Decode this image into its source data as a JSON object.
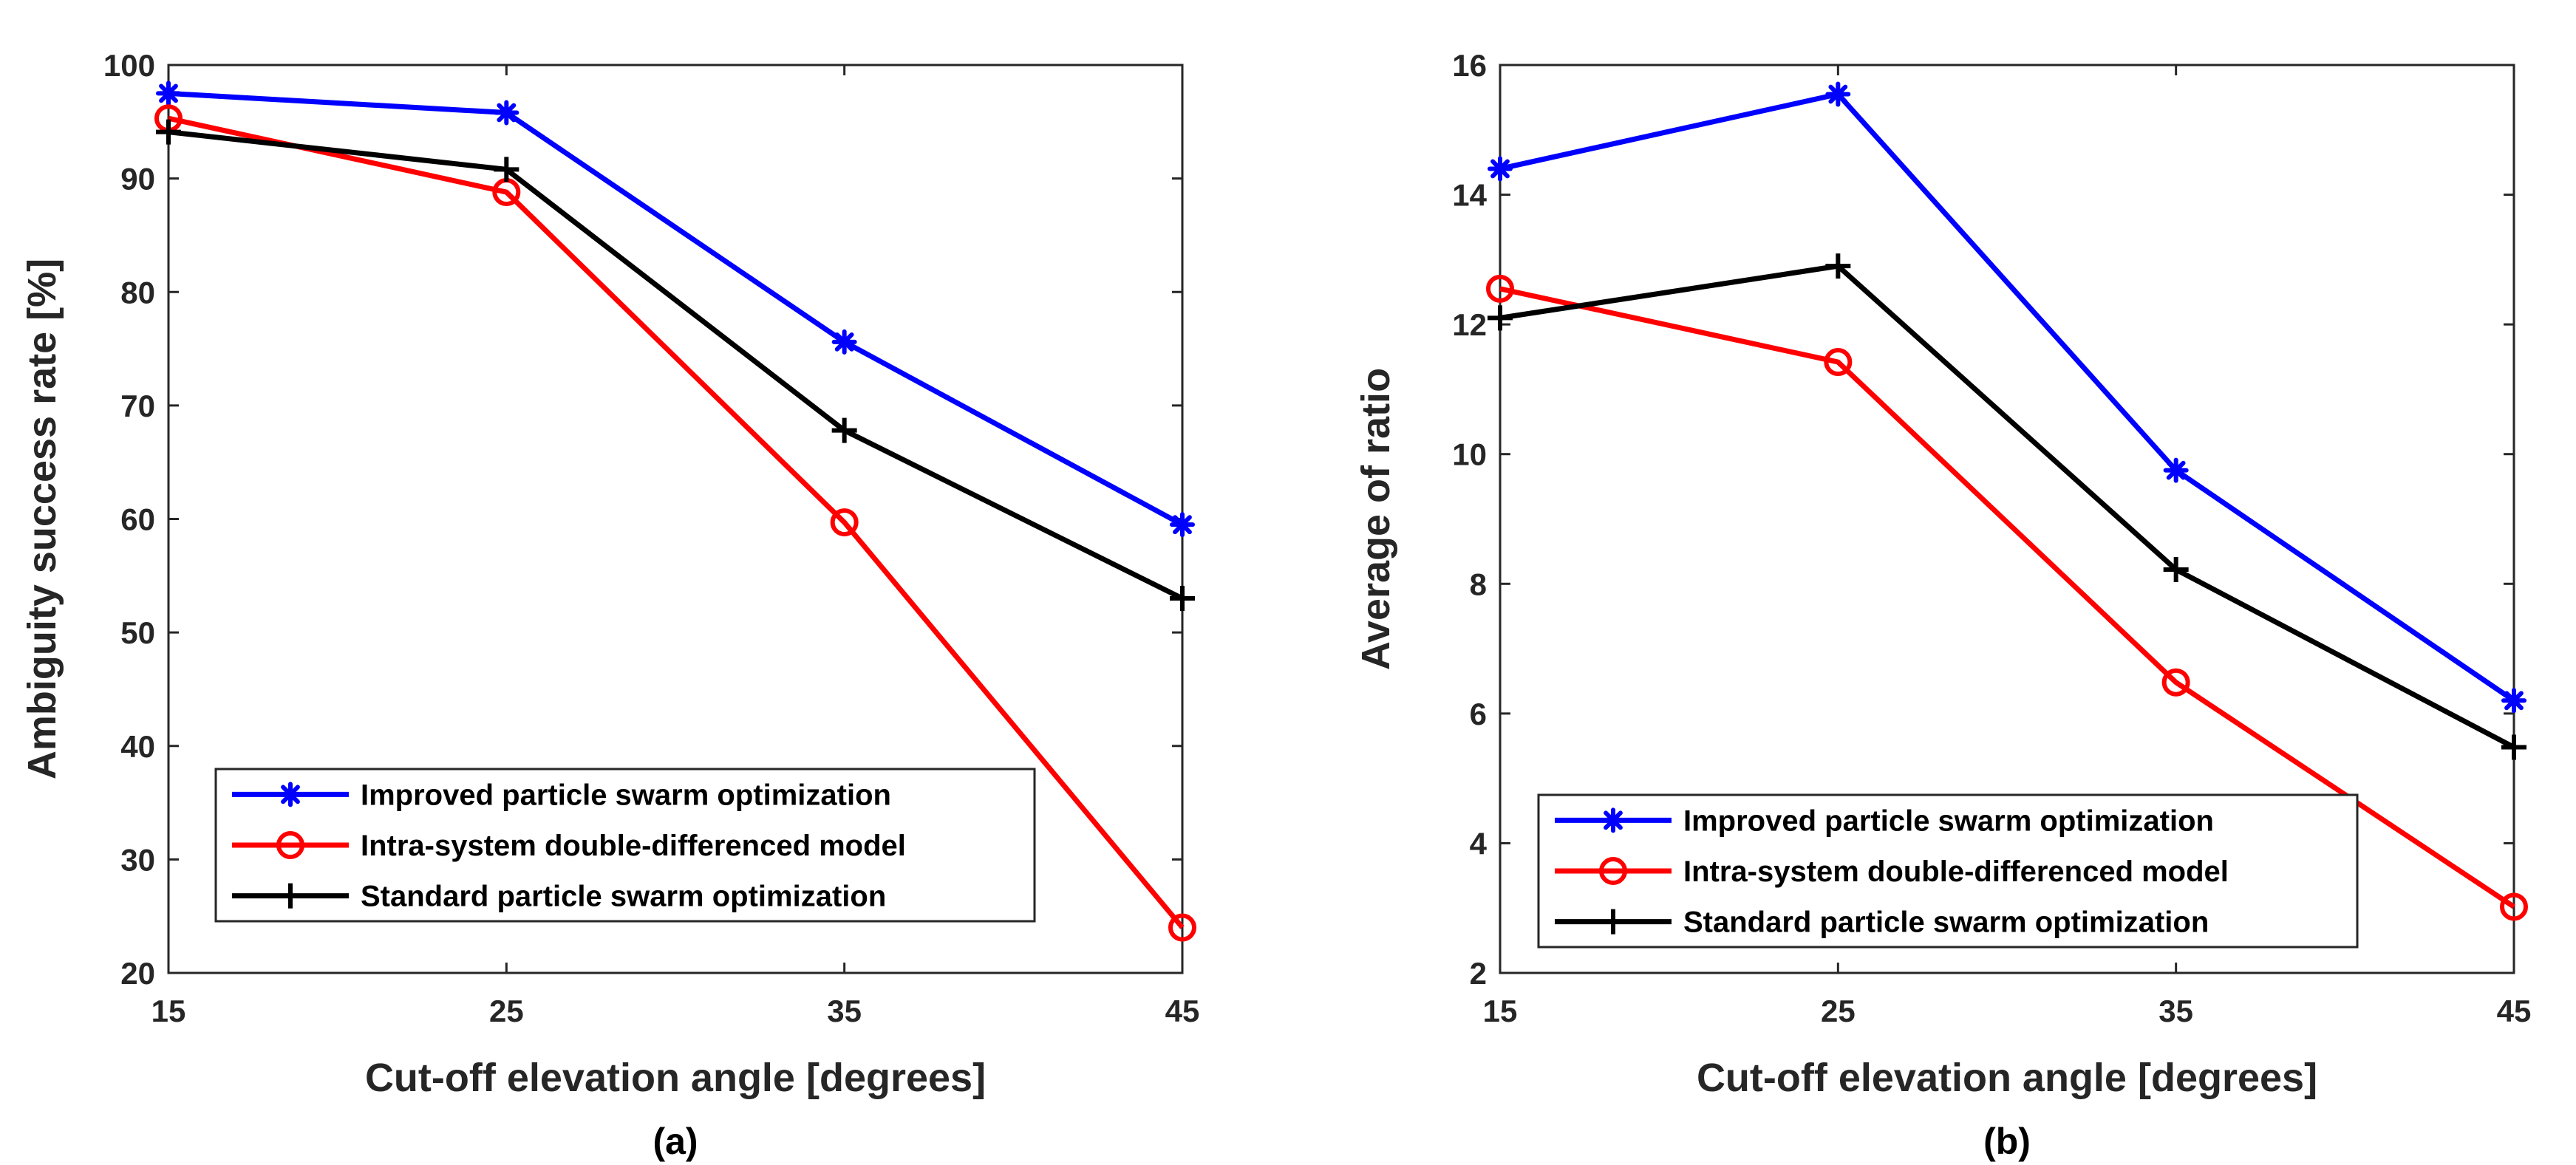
{
  "chart_data": [
    {
      "type": "line",
      "caption": "(a)",
      "xlabel": "Cut-off elevation angle [degrees]",
      "ylabel": "Ambiguity success rate [%]",
      "x": [
        15,
        25,
        35,
        45
      ],
      "xlim": [
        15,
        45
      ],
      "ylim": [
        20,
        100
      ],
      "xticks": [
        15,
        25,
        35,
        45
      ],
      "yticks": [
        20,
        30,
        40,
        50,
        60,
        70,
        80,
        90,
        100
      ],
      "grid": false,
      "legend_position": "bottom-left",
      "series": [
        {
          "name": "Improved particle swarm optimization",
          "color": "#0000ff",
          "marker": "asterisk",
          "values": [
            97.5,
            95.8,
            75.6,
            59.5
          ]
        },
        {
          "name": "Intra-system double-differenced model",
          "color": "#ff0000",
          "marker": "circle",
          "values": [
            95.3,
            88.8,
            59.7,
            24.0
          ]
        },
        {
          "name": "Standard particle swarm optimization",
          "color": "#000000",
          "marker": "plus",
          "values": [
            94.1,
            90.8,
            67.8,
            53.0
          ]
        }
      ]
    },
    {
      "type": "line",
      "caption": "(b)",
      "xlabel": "Cut-off elevation angle [degrees]",
      "ylabel": "Average of ratio",
      "x": [
        15,
        25,
        35,
        45
      ],
      "xlim": [
        15,
        45
      ],
      "ylim": [
        2,
        16
      ],
      "xticks": [
        15,
        25,
        35,
        45
      ],
      "yticks": [
        2,
        4,
        6,
        8,
        10,
        12,
        14,
        16
      ],
      "grid": false,
      "legend_position": "bottom-left",
      "series": [
        {
          "name": "Improved particle swarm optimization",
          "color": "#0000ff",
          "marker": "asterisk",
          "values": [
            14.4,
            15.55,
            9.75,
            6.2
          ]
        },
        {
          "name": "Intra-system double-differenced model",
          "color": "#ff0000",
          "marker": "circle",
          "values": [
            12.55,
            11.42,
            6.48,
            3.02
          ]
        },
        {
          "name": "Standard particle swarm optimization",
          "color": "#000000",
          "marker": "plus",
          "values": [
            12.1,
            12.9,
            8.22,
            5.48
          ]
        }
      ]
    }
  ]
}
